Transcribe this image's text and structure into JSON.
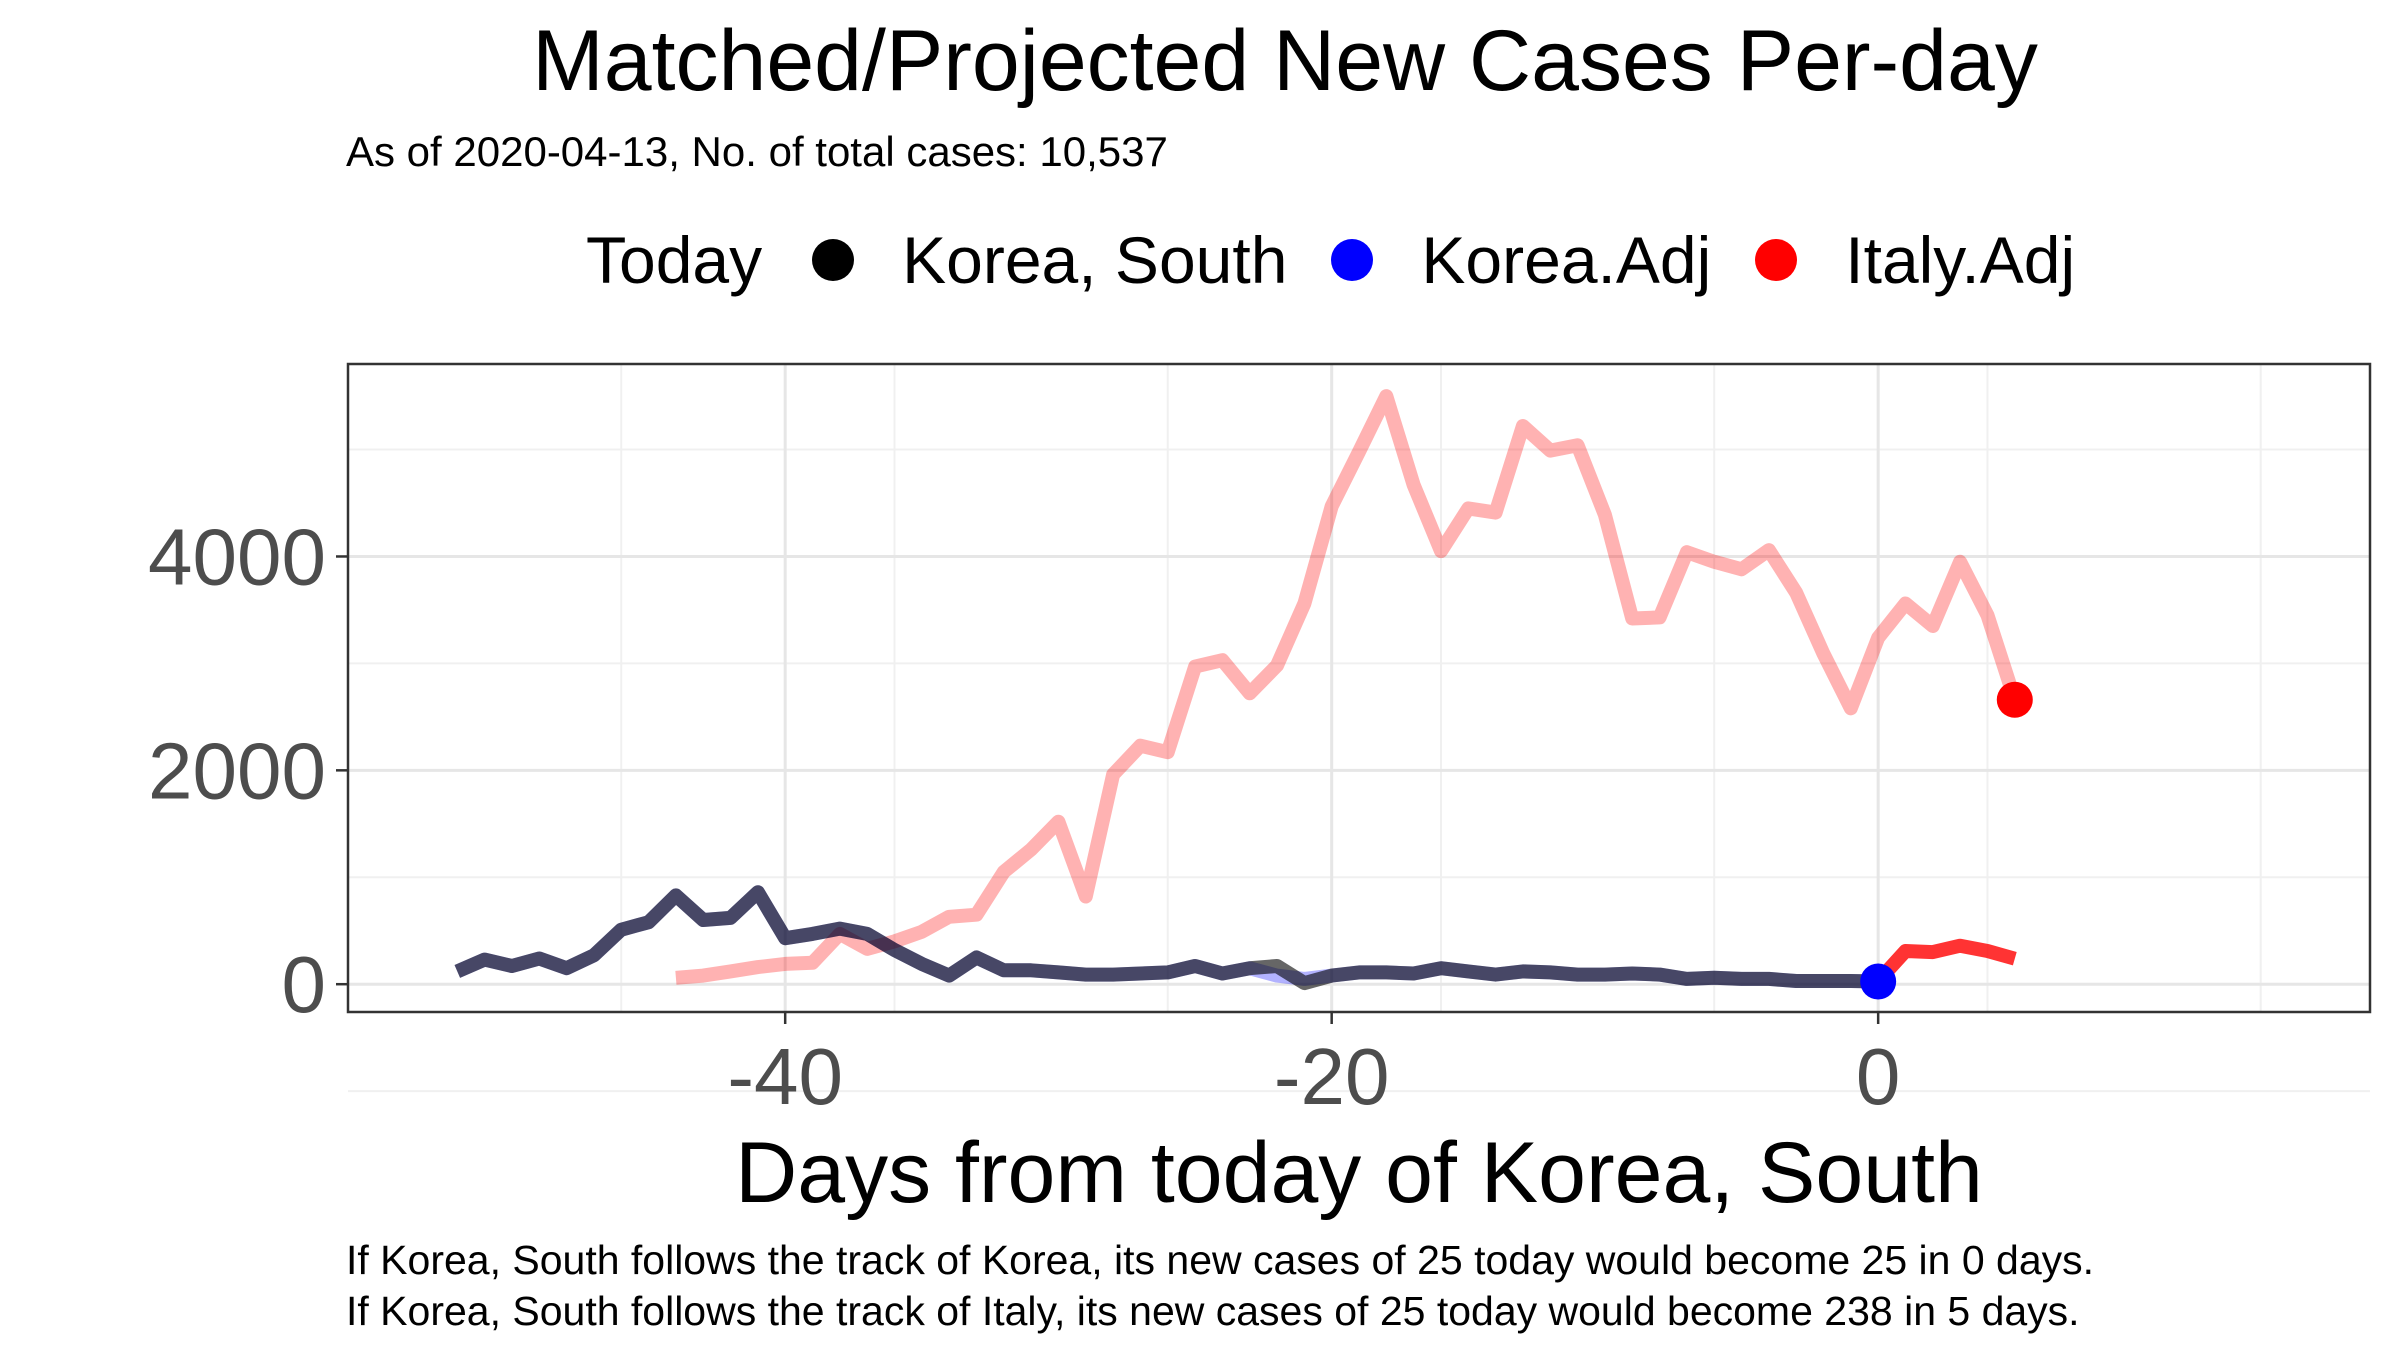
{
  "chart_data": {
    "type": "line",
    "title": "Matched/Projected New Cases Per-day",
    "subtitle": "As of 2020-04-13, No. of total cases: 10,537",
    "xlabel": "Days from today of Korea, South",
    "ylabel": "",
    "xlim": [
      -56,
      18
    ],
    "ylim": [
      -260,
      5800
    ],
    "x_ticks": [
      -40,
      -20,
      0
    ],
    "y_ticks": [
      0,
      2000,
      4000
    ],
    "grid": true,
    "legend": {
      "title": "Today",
      "position": "top",
      "entries": [
        {
          "name": "Korea, South",
          "color": "#000000"
        },
        {
          "name": "Korea.Adj",
          "color": "#0000ff"
        },
        {
          "name": "Italy.Adj",
          "color": "#ff0000"
        }
      ]
    },
    "series": [
      {
        "name": "Korea, South",
        "color": "#000000",
        "x": [
          -52,
          -51,
          -50,
          -49,
          -48,
          -47,
          -46,
          -45,
          -44,
          -43,
          -42,
          -41,
          -40,
          -39,
          -38,
          -37,
          -36,
          -35,
          -34,
          -33,
          -32,
          -31,
          -30,
          -29,
          -28,
          -27,
          -26,
          -25,
          -24,
          -23,
          -22,
          -21,
          -20,
          -19,
          -18,
          -17,
          -16,
          -15,
          -14,
          -13,
          -12,
          -11,
          -10,
          -9,
          -8,
          -7,
          -6,
          -5,
          -4,
          -3,
          -2,
          -1,
          0
        ],
        "y": [
          120,
          230,
          170,
          240,
          150,
          270,
          510,
          580,
          830,
          600,
          620,
          860,
          430,
          470,
          520,
          470,
          320,
          190,
          80,
          250,
          130,
          130,
          110,
          90,
          90,
          100,
          110,
          170,
          100,
          150,
          170,
          10,
          80,
          110,
          110,
          100,
          150,
          120,
          90,
          120,
          110,
          90,
          90,
          100,
          90,
          50,
          60,
          50,
          50,
          30,
          30,
          30,
          25
        ]
      },
      {
        "name": "Korea.Adj",
        "color": "#0000ff",
        "x": [
          -52,
          -51,
          -50,
          -49,
          -48,
          -47,
          -46,
          -45,
          -44,
          -43,
          -42,
          -41,
          -40,
          -39,
          -38,
          -37,
          -36,
          -35,
          -34,
          -33,
          -32,
          -31,
          -30,
          -29,
          -28,
          -27,
          -26,
          -25,
          -24,
          -23,
          -22,
          -21,
          -20,
          -19,
          -18,
          -17,
          -16,
          -15,
          -14,
          -13,
          -12,
          -11,
          -10,
          -9,
          -8,
          -7,
          -6,
          -5,
          -4,
          -3,
          -2,
          -1,
          0
        ],
        "y": [
          120,
          230,
          170,
          240,
          150,
          270,
          510,
          580,
          830,
          600,
          620,
          860,
          430,
          470,
          520,
          470,
          320,
          190,
          80,
          250,
          130,
          130,
          110,
          90,
          90,
          100,
          110,
          170,
          100,
          150,
          80,
          50,
          80,
          110,
          110,
          100,
          150,
          120,
          90,
          120,
          110,
          90,
          90,
          100,
          90,
          50,
          60,
          50,
          50,
          30,
          30,
          30,
          25
        ]
      },
      {
        "name": "Italy.Adj",
        "color": "#ff0000",
        "x_history": [
          -44,
          -43,
          -42,
          -41,
          -40,
          -39,
          -38,
          -37,
          -36,
          -35,
          -34,
          -33,
          -32,
          -31,
          -30,
          -29,
          -28,
          -27,
          -26,
          -25,
          -24,
          -23,
          -22,
          -21,
          -20,
          -19,
          -18,
          -17,
          -16,
          -15,
          -14,
          -13,
          -12,
          -11,
          -10,
          -9,
          -8,
          -7,
          -6,
          -5,
          -4,
          -3,
          -2,
          -1,
          0,
          1,
          2,
          3,
          4,
          5
        ],
        "y_history": [
          60,
          80,
          120,
          160,
          190,
          200,
          470,
          330,
          400,
          490,
          630,
          650,
          1050,
          1260,
          1520,
          820,
          1960,
          2230,
          2170,
          2970,
          3030,
          2720,
          2980,
          3560,
          4470,
          4980,
          5500,
          4670,
          4050,
          4450,
          4410,
          5220,
          4990,
          5040,
          4390,
          3420,
          3430,
          4040,
          3950,
          3880,
          4060,
          3660,
          3090,
          2580,
          3240,
          3560,
          3350,
          3950,
          3450,
          2660
        ],
        "x_projection": [
          0,
          1,
          2,
          3,
          4,
          5
        ],
        "y_projection": [
          30,
          310,
          300,
          360,
          310,
          238
        ]
      }
    ],
    "today_points": [
      {
        "series": "Korea.Adj",
        "x": 0,
        "y": 25,
        "color": "#0000ff"
      },
      {
        "series": "Italy.Adj",
        "x": 5,
        "y": 2660,
        "color": "#ff0000"
      }
    ],
    "captions": [
      "If Korea, South follows the track of Korea, its new cases of 25 today would become 25 in 0 days.",
      "If Korea, South follows the track of Italy, its new cases of 25 today would become 238 in 5 days."
    ]
  }
}
